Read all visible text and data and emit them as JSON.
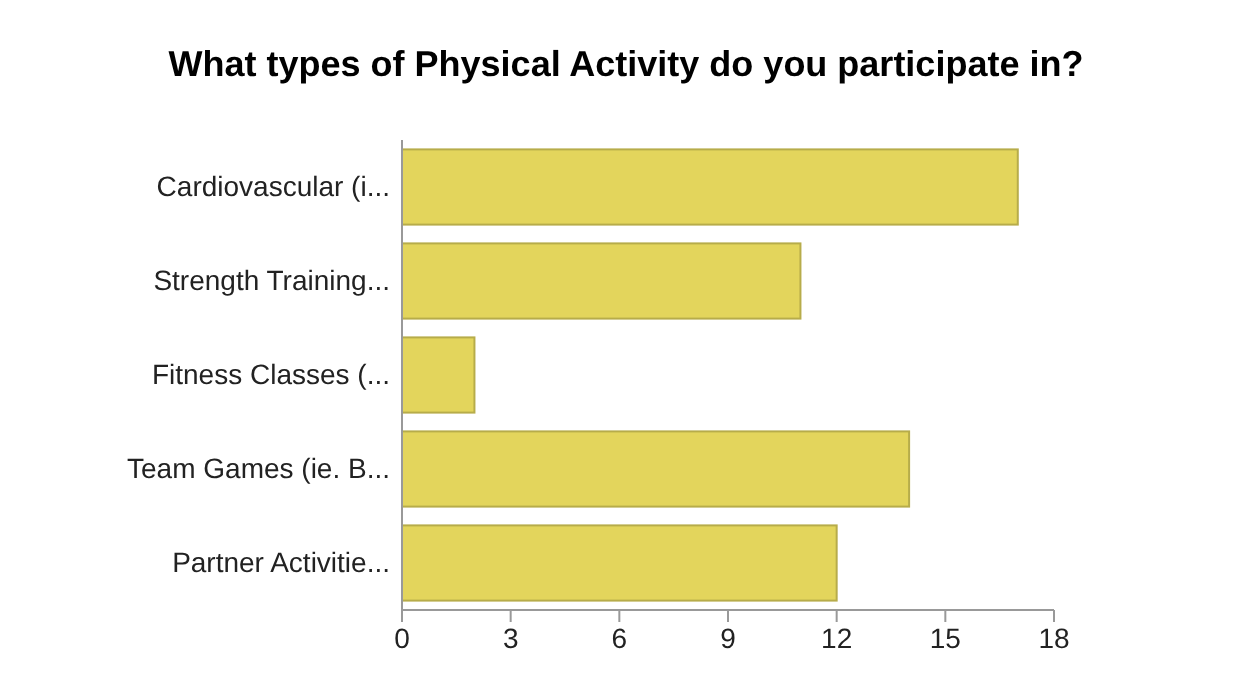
{
  "chart_data": {
    "type": "bar",
    "orientation": "horizontal",
    "title": "What types of Physical Activity do you participate in?",
    "categories": [
      "Cardiovascular (i...",
      "Strength Training...",
      "Fitness Classes (...",
      "Team Games (ie. B...",
      "Partner Activitie..."
    ],
    "values": [
      17,
      11,
      2,
      14,
      12
    ],
    "color": "#e3d55c",
    "xlim": [
      0,
      18
    ],
    "xticks": [
      0,
      3,
      6,
      9,
      12,
      15,
      18
    ]
  }
}
